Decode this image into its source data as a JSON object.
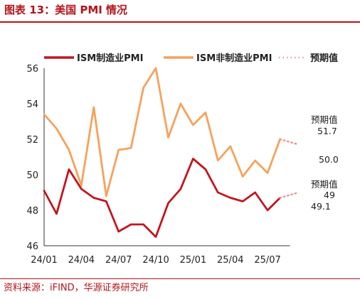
{
  "header": {
    "title": "图表 13：美国 PMI 情况"
  },
  "footer": {
    "source": "资料来源：iFIND，华源证券研究所"
  },
  "colors": {
    "accent": "#b3141b",
    "manufacturing": "#c0161f",
    "non_manufacturing": "#f5a25c",
    "expected": "#e89a9a"
  },
  "chart_data": {
    "type": "line",
    "ylim": [
      46,
      56
    ],
    "yticks": [
      46,
      48,
      50,
      52,
      54,
      56
    ],
    "x": [
      "24/01",
      "24/02",
      "24/03",
      "24/04",
      "24/05",
      "24/06",
      "24/07",
      "24/08",
      "24/09",
      "24/10",
      "24/11",
      "24/12",
      "25/01",
      "25/02",
      "25/03",
      "25/04",
      "25/05",
      "25/06",
      "25/07",
      "25/08"
    ],
    "xticks": [
      "24/01",
      "24/04",
      "24/07",
      "24/10",
      "25/01",
      "25/04",
      "25/07"
    ],
    "series": [
      {
        "name": "ISM制造业PMI",
        "color": "#c0161f",
        "values": [
          49.1,
          47.8,
          50.3,
          49.2,
          48.7,
          48.5,
          46.8,
          47.2,
          47.2,
          46.5,
          48.4,
          49.2,
          50.9,
          50.3,
          49.0,
          48.7,
          48.5,
          49.0,
          48.0,
          48.7
        ]
      },
      {
        "name": "ISM非制造业PMI",
        "color": "#f5a25c",
        "values": [
          53.4,
          52.6,
          51.4,
          49.4,
          53.8,
          48.8,
          51.4,
          51.5,
          54.9,
          56.0,
          52.1,
          54.0,
          52.8,
          53.5,
          50.8,
          51.6,
          49.9,
          50.8,
          50.1,
          52.0
        ]
      },
      {
        "name": "预期值",
        "style": "dotted",
        "segments": [
          {
            "from": {
              "x": "25/08",
              "y": 48.7
            },
            "to": {
              "x": "25/09",
              "y": 49.0
            }
          },
          {
            "from": {
              "x": "25/08",
              "y": 52.0
            },
            "to": {
              "x": "25/09",
              "y": 51.7
            }
          }
        ]
      }
    ],
    "annotations": {
      "expected_label": "预期值",
      "non_mfg_expected": "51.7",
      "non_mfg_actual": "50.0",
      "mfg_expected": "49",
      "mfg_actual": "49.1"
    },
    "actual_points": {
      "manufacturing": 49.1,
      "non_manufacturing": 50.0
    },
    "legend_position": "top"
  }
}
